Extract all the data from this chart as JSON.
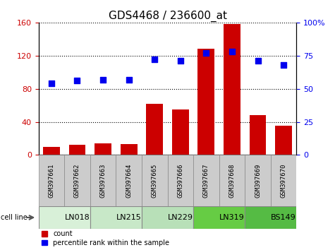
{
  "title": "GDS4468 / 236600_at",
  "samples": [
    "GSM397661",
    "GSM397662",
    "GSM397663",
    "GSM397664",
    "GSM397665",
    "GSM397666",
    "GSM397667",
    "GSM397668",
    "GSM397669",
    "GSM397670"
  ],
  "counts": [
    10,
    12,
    14,
    13,
    62,
    55,
    128,
    158,
    48,
    35
  ],
  "percentile": [
    54,
    56,
    57,
    57,
    72,
    71,
    77,
    78,
    71,
    68
  ],
  "cell_lines": [
    {
      "label": "LN018",
      "start": 0,
      "end": 2,
      "color": "#d8f0d8"
    },
    {
      "label": "LN215",
      "start": 2,
      "end": 4,
      "color": "#c8e8c8"
    },
    {
      "label": "LN229",
      "start": 4,
      "end": 6,
      "color": "#b8e0b8"
    },
    {
      "label": "LN319",
      "start": 6,
      "end": 8,
      "color": "#66cc44"
    },
    {
      "label": "BS149",
      "start": 8,
      "end": 10,
      "color": "#55bb44"
    }
  ],
  "left_ylim": [
    0,
    160
  ],
  "left_yticks": [
    0,
    40,
    80,
    120,
    160
  ],
  "right_ylim": [
    0,
    100
  ],
  "right_yticks": [
    0,
    25,
    50,
    75,
    100
  ],
  "right_yticklabels": [
    "0",
    "25",
    "50",
    "75",
    "100%"
  ],
  "bar_color": "#cc0000",
  "dot_color": "#0000ee",
  "grid_color": "#000000",
  "bg_color": "#ffffff",
  "tick_label_color_left": "#cc0000",
  "tick_label_color_right": "#0000ee",
  "title_fontsize": 11,
  "tick_fontsize": 8,
  "sample_label_fontsize": 6.5,
  "cellline_fontsize": 8
}
